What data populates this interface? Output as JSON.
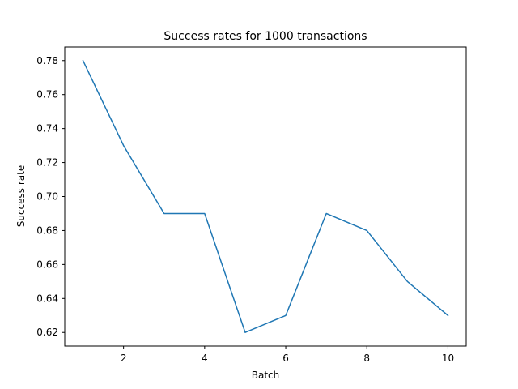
{
  "chart_data": {
    "type": "line",
    "title": "Success rates for 1000 transactions",
    "xlabel": "Batch",
    "ylabel": "Success rate",
    "xlim": [
      0.55,
      10.45
    ],
    "ylim": [
      0.612,
      0.788
    ],
    "xticks": [
      2,
      4,
      6,
      8,
      10
    ],
    "xtick_labels": [
      "2",
      "4",
      "6",
      "8",
      "10"
    ],
    "yticks": [
      0.62,
      0.64,
      0.66,
      0.68,
      0.7,
      0.72,
      0.74,
      0.76,
      0.78
    ],
    "ytick_labels": [
      "0.62",
      "0.64",
      "0.66",
      "0.68",
      "0.70",
      "0.72",
      "0.74",
      "0.76",
      "0.78"
    ],
    "grid": false,
    "legend": "none",
    "line_color": "#1f77b4",
    "series": [
      {
        "x": [
          1,
          2,
          3,
          4,
          5,
          6,
          7,
          8,
          9,
          10
        ],
        "values": [
          0.78,
          0.73,
          0.69,
          0.69,
          0.62,
          0.63,
          0.69,
          0.68,
          0.65,
          0.63
        ]
      }
    ]
  }
}
